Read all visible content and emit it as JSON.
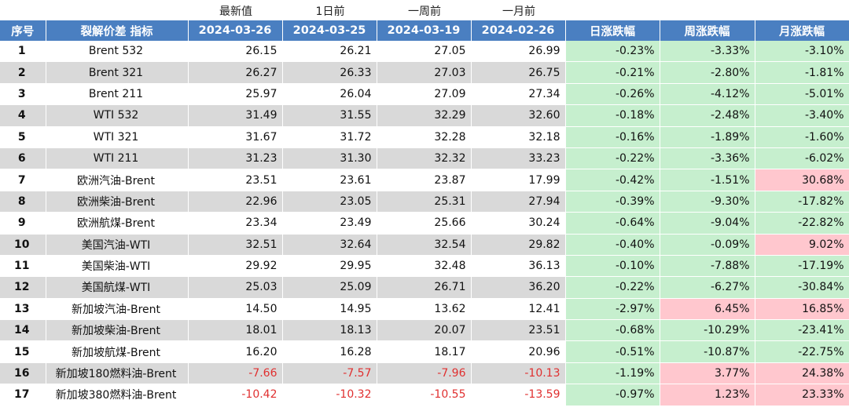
{
  "top_labels": [
    "最新值",
    "1日前",
    "一周前",
    "一月前"
  ],
  "headers": [
    "序号",
    "裂解价差 指标",
    "2024-03-26",
    "2024-03-25",
    "2024-03-19",
    "2024-02-26",
    "日涨跌幅",
    "周涨跌幅",
    "月涨跌幅"
  ],
  "colors": {
    "header_bg": "#4a7fc1",
    "stripe": "#d9d9d9",
    "up_bg": "#ffc7ce",
    "down_bg": "#c6efce",
    "negative_text": "#e03030"
  },
  "rows": [
    {
      "idx": "1",
      "name": "Brent 532",
      "v": [
        "26.15",
        "26.21",
        "27.05",
        "26.99"
      ],
      "p": [
        "-0.23%",
        "-3.33%",
        "-3.10%"
      ]
    },
    {
      "idx": "2",
      "name": "Brent 321",
      "v": [
        "26.27",
        "26.33",
        "27.03",
        "26.75"
      ],
      "p": [
        "-0.21%",
        "-2.80%",
        "-1.81%"
      ]
    },
    {
      "idx": "3",
      "name": "Brent 211",
      "v": [
        "25.97",
        "26.04",
        "27.09",
        "27.34"
      ],
      "p": [
        "-0.26%",
        "-4.12%",
        "-5.01%"
      ]
    },
    {
      "idx": "4",
      "name": "WTI 532",
      "v": [
        "31.49",
        "31.55",
        "32.29",
        "32.60"
      ],
      "p": [
        "-0.18%",
        "-2.48%",
        "-3.40%"
      ]
    },
    {
      "idx": "5",
      "name": "WTI 321",
      "v": [
        "31.67",
        "31.72",
        "32.28",
        "32.18"
      ],
      "p": [
        "-0.16%",
        "-1.89%",
        "-1.60%"
      ]
    },
    {
      "idx": "6",
      "name": "WTI 211",
      "v": [
        "31.23",
        "31.30",
        "32.32",
        "33.23"
      ],
      "p": [
        "-0.22%",
        "-3.36%",
        "-6.02%"
      ]
    },
    {
      "idx": "7",
      "name": "欧洲汽油-Brent",
      "v": [
        "23.51",
        "23.61",
        "23.87",
        "17.99"
      ],
      "p": [
        "-0.42%",
        "-1.51%",
        "30.68%"
      ]
    },
    {
      "idx": "8",
      "name": "欧洲柴油-Brent",
      "v": [
        "22.96",
        "23.05",
        "25.31",
        "27.94"
      ],
      "p": [
        "-0.39%",
        "-9.30%",
        "-17.82%"
      ]
    },
    {
      "idx": "9",
      "name": "欧洲航煤-Brent",
      "v": [
        "23.34",
        "23.49",
        "25.66",
        "30.24"
      ],
      "p": [
        "-0.64%",
        "-9.04%",
        "-22.82%"
      ]
    },
    {
      "idx": "10",
      "name": "美国汽油-WTI",
      "v": [
        "32.51",
        "32.64",
        "32.54",
        "29.82"
      ],
      "p": [
        "-0.40%",
        "-0.09%",
        "9.02%"
      ]
    },
    {
      "idx": "11",
      "name": "美国柴油-WTI",
      "v": [
        "29.92",
        "29.95",
        "32.48",
        "36.13"
      ],
      "p": [
        "-0.10%",
        "-7.88%",
        "-17.19%"
      ]
    },
    {
      "idx": "12",
      "name": "美国航煤-WTI",
      "v": [
        "25.03",
        "25.09",
        "26.71",
        "36.20"
      ],
      "p": [
        "-0.22%",
        "-6.27%",
        "-30.84%"
      ]
    },
    {
      "idx": "13",
      "name": "新加坡汽油-Brent",
      "v": [
        "14.50",
        "14.95",
        "13.62",
        "12.41"
      ],
      "p": [
        "-2.97%",
        "6.45%",
        "16.85%"
      ]
    },
    {
      "idx": "14",
      "name": "新加坡柴油-Brent",
      "v": [
        "18.01",
        "18.13",
        "20.07",
        "23.51"
      ],
      "p": [
        "-0.68%",
        "-10.29%",
        "-23.41%"
      ]
    },
    {
      "idx": "15",
      "name": "新加坡航煤-Brent",
      "v": [
        "16.20",
        "16.28",
        "18.17",
        "20.96"
      ],
      "p": [
        "-0.51%",
        "-10.87%",
        "-22.75%"
      ]
    },
    {
      "idx": "16",
      "name": "新加坡180燃料油-Brent",
      "v": [
        "-7.66",
        "-7.57",
        "-7.96",
        "-10.13"
      ],
      "p": [
        "-1.19%",
        "3.77%",
        "24.38%"
      ]
    },
    {
      "idx": "17",
      "name": "新加坡380燃料油-Brent",
      "v": [
        "-10.42",
        "-10.32",
        "-10.55",
        "-13.59"
      ],
      "p": [
        "-0.97%",
        "1.23%",
        "23.33%"
      ]
    }
  ]
}
